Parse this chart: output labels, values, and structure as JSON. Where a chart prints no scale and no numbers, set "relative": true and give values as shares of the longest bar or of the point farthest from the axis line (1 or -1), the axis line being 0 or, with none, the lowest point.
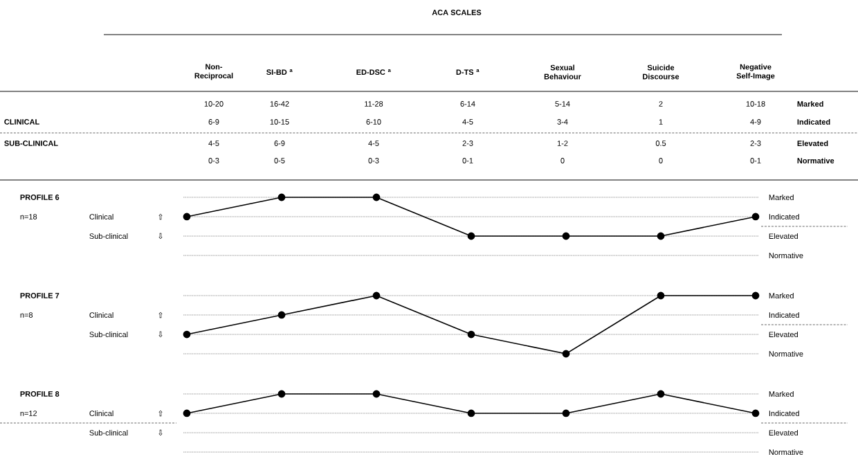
{
  "chart_data": [
    {
      "type": "other",
      "title": "ACA SCALES",
      "categories": [
        "Non-Reciprocal",
        "SI-BD $^{a}$",
        "ED-DSC $^{a}$",
        "D-TS $^{a}$",
        "Sexual Behaviour",
        "Suicide Discourse",
        "Negative Self-Image"
      ],
      "y_categories": [
        "Marked",
        "Indicated",
        "Elevated",
        "Normative"
      ],
      "cell_labels": [
        [
          "10-20",
          "16-42",
          "11-28",
          "6-14",
          "5-14",
          "2",
          "10-18"
        ],
        [
          "6-9",
          "10-15",
          "6-10",
          "4-5",
          "3-4",
          "1",
          "4-9"
        ],
        [
          "4-5",
          "6-9",
          "4-5",
          "2-3",
          "1-2",
          "0.5",
          "2-3"
        ],
        [
          "0-3",
          "0-5",
          "0-3",
          "0-1",
          "0",
          "0",
          "0-1"
        ]
      ],
      "annotations": [
        "CLINICAL",
        "SUB-CLINICAL"
      ]
    },
    {
      "type": "line",
      "relative": true,
      "categories": [
        null,
        null,
        null,
        null,
        null,
        null,
        null
      ],
      "series": [
        {
          "color": "#000000",
          "values": [
            0.667,
            1,
            1,
            0.333,
            0.333,
            0.333,
            0.667
          ]
        }
      ],
      "ref_lines": [
        {
          "axis": "y",
          "value": 1,
          "label": "Marked",
          "line_style": "dashed"
        },
        {
          "axis": "y",
          "value": 0.667,
          "label": "Indicated",
          "line_style": "dashed"
        },
        {
          "axis": "y",
          "value": 0.333,
          "label": "Elevated",
          "line_style": "dashed"
        },
        {
          "axis": "y",
          "value": 0,
          "label": "Normative",
          "line_style": "dashed"
        }
      ],
      "marker": "circle",
      "annotations": [
        "PROFILE 6",
        "n=18",
        "Clinical",
        "⇧",
        "Sub-clinical",
        "⇩"
      ]
    },
    {
      "type": "line",
      "relative": true,
      "categories": [
        null,
        null,
        null,
        null,
        null,
        null,
        null
      ],
      "series": [
        {
          "color": "#000000",
          "values": [
            0.333,
            0.667,
            1,
            0.333,
            0,
            1,
            1
          ]
        }
      ],
      "ref_lines": [
        {
          "axis": "y",
          "value": 1,
          "label": "Marked",
          "line_style": "dashed"
        },
        {
          "axis": "y",
          "value": 0.667,
          "label": "Indicated",
          "line_style": "dashed"
        },
        {
          "axis": "y",
          "value": 0.333,
          "label": "Elevated",
          "line_style": "dashed"
        },
        {
          "axis": "y",
          "value": 0,
          "label": "Normative",
          "line_style": "dashed"
        }
      ],
      "marker": "circle",
      "annotations": [
        "PROFILE 7",
        "n=8",
        "Clinical",
        "⇧",
        "Sub-clinical",
        "⇩"
      ]
    },
    {
      "type": "line",
      "relative": true,
      "categories": [
        null,
        null,
        null,
        null,
        null,
        null,
        null
      ],
      "series": [
        {
          "color": "#000000",
          "values": [
            0.667,
            1,
            1,
            0.667,
            0.667,
            1,
            0.667
          ]
        }
      ],
      "ref_lines": [
        {
          "axis": "y",
          "value": 1,
          "label": "Marked",
          "line_style": "dashed"
        },
        {
          "axis": "y",
          "value": 0.667,
          "label": "Indicated",
          "line_style": "dashed"
        },
        {
          "axis": "y",
          "value": 0.333,
          "label": "Elevated",
          "line_style": "dashed"
        },
        {
          "axis": "y",
          "value": 0,
          "label": "Normative",
          "line_style": "dashed"
        }
      ],
      "marker": "circle",
      "annotations": [
        "PROFILE 8",
        "n=12",
        "Clinical",
        "⇧",
        "Sub-clinical",
        "⇩"
      ]
    }
  ]
}
